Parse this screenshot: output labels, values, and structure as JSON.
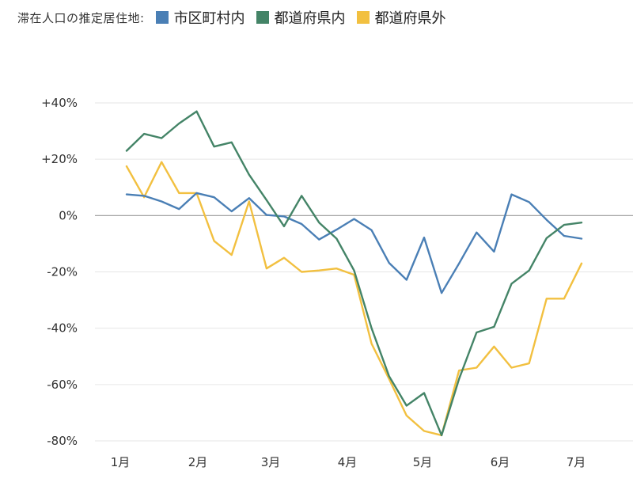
{
  "legend": {
    "title": "滞在人口の推定居住地:",
    "items": [
      {
        "label": "市区町村内",
        "color": "#4a7fb5"
      },
      {
        "label": "都道府県内",
        "color": "#448467"
      },
      {
        "label": "都道府県外",
        "color": "#f2c040"
      }
    ]
  },
  "chart_data": {
    "type": "line",
    "x_tick_labels": [
      "1月",
      "2月",
      "3月",
      "4月",
      "5月",
      "6月",
      "7月"
    ],
    "y_ticks": [
      {
        "value": 40,
        "label": "+40%"
      },
      {
        "value": 20,
        "label": "+20%"
      },
      {
        "value": 0,
        "label": "0%"
      },
      {
        "value": -20,
        "label": "-20%"
      },
      {
        "value": -40,
        "label": "-40%"
      },
      {
        "value": -60,
        "label": "-60%"
      },
      {
        "value": -80,
        "label": "-80%"
      }
    ],
    "ylim": [
      -80,
      40
    ],
    "grid": true,
    "legend_position": "top-left",
    "series": [
      {
        "name": "市区町村内",
        "color": "#4a7fb5",
        "values": [
          7.5,
          7,
          5,
          2.3,
          8,
          6.5,
          1.5,
          6.2,
          0.2,
          -0.3,
          -3,
          -8.5,
          -5,
          -1.2,
          -5.2,
          -16.8,
          -22.8,
          -7.8,
          -27.5,
          -17,
          -6,
          -12.8,
          7.5,
          4.8,
          -1.5,
          -7.2,
          -8.2
        ]
      },
      {
        "name": "都道府県内",
        "color": "#448467",
        "values": [
          23,
          29,
          27.5,
          32.7,
          37,
          24.5,
          26,
          14.5,
          5.5,
          -3.8,
          7,
          -2.5,
          -8.2,
          -19.5,
          -40,
          -57,
          -67.5,
          -63,
          -78,
          -58,
          -41.5,
          -39.5,
          -24.2,
          -19.5,
          -8,
          -3.3,
          -2.5
        ]
      },
      {
        "name": "都道府県外",
        "color": "#f2c040",
        "values": [
          17.5,
          6.5,
          19,
          8,
          8,
          -9,
          -14,
          5,
          -18.8,
          -15,
          -20,
          -19.5,
          -18.8,
          -21,
          -45.5,
          -58,
          -71,
          -76.5,
          -78,
          -55,
          -54,
          -46.5,
          -54,
          -52.5,
          -29.5,
          -29.5,
          -17
        ]
      }
    ]
  }
}
